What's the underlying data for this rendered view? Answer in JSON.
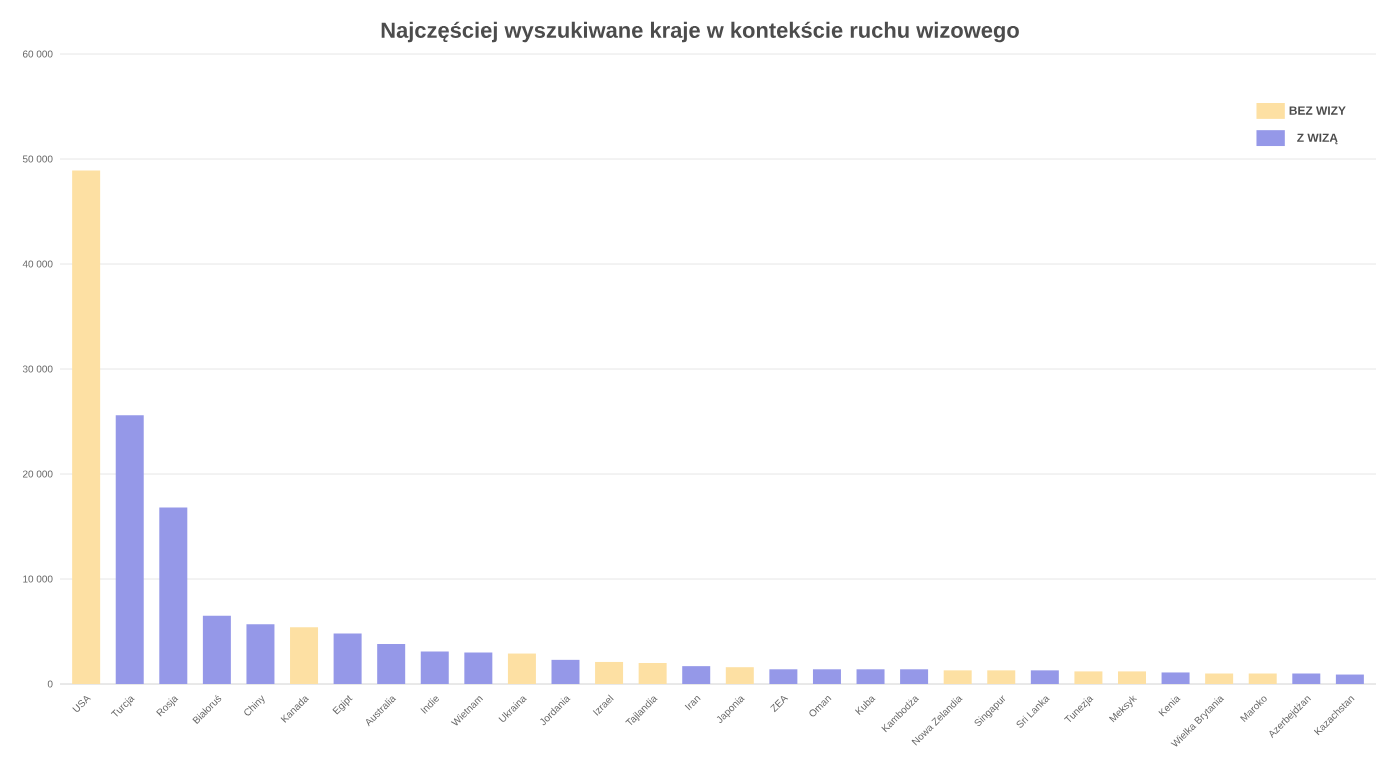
{
  "chart_data": {
    "type": "bar",
    "title": "Najczęściej wyszukiwane kraje w kontekście ruchu wizowego",
    "categories": [
      "USA",
      "Turcja",
      "Rosja",
      "Białoruś",
      "Chiny",
      "Kanada",
      "Egipt",
      "Australia",
      "Indie",
      "Wietnam",
      "Ukraina",
      "Jordania",
      "Izrael",
      "Tajlandia",
      "Iran",
      "Japonia",
      "ZEA",
      "Oman",
      "Kuba",
      "Kambodża",
      "Nowa Zelandia",
      "Singapur",
      "Sri Lanka",
      "Tunezja",
      "Meksyk",
      "Kenia",
      "Wielka Brytania",
      "Maroko",
      "Azerbejdżan",
      "Kazachstan"
    ],
    "series": [
      {
        "name": "BEZ WIZY",
        "color": "#fde0a3",
        "values": [
          48900,
          null,
          null,
          null,
          null,
          5400,
          null,
          null,
          null,
          null,
          2900,
          null,
          2100,
          2000,
          null,
          1600,
          null,
          null,
          null,
          null,
          1300,
          1300,
          null,
          1200,
          1200,
          null,
          1000,
          1000,
          null,
          null
        ]
      },
      {
        "name": "Z WIZĄ",
        "color": "#9598e8",
        "values": [
          null,
          25600,
          16800,
          6500,
          5700,
          null,
          4800,
          3800,
          3100,
          3000,
          null,
          2300,
          null,
          null,
          1700,
          null,
          1400,
          1400,
          1400,
          1400,
          null,
          null,
          1300,
          null,
          null,
          1100,
          null,
          null,
          1000,
          900
        ]
      }
    ],
    "ylim": [
      0,
      60000
    ],
    "yticks": [
      {
        "value": 0,
        "label": "0"
      },
      {
        "value": 10000,
        "label": "10 000"
      },
      {
        "value": 20000,
        "label": "20 000"
      },
      {
        "value": 30000,
        "label": "30 000"
      },
      {
        "value": 40000,
        "label": "40 000"
      },
      {
        "value": 50000,
        "label": "50 000"
      },
      {
        "value": 60000,
        "label": "60 000"
      }
    ],
    "grid": "y",
    "legend": "top right"
  }
}
